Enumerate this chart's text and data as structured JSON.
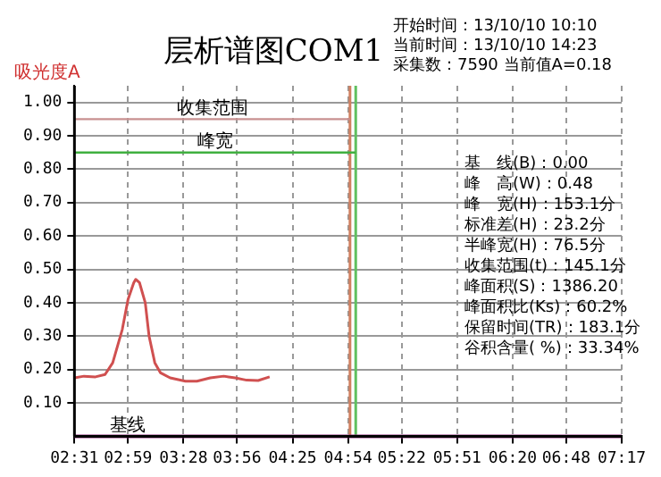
{
  "chart_data": {
    "type": "line",
    "title": "层析谱图COM1",
    "ylabel": "吸光度A",
    "xlim": [
      151,
      437
    ],
    "xticks": [
      {
        "value": 151,
        "label": "02:31"
      },
      {
        "value": 179,
        "label": "02:59"
      },
      {
        "value": 208,
        "label": "03:28"
      },
      {
        "value": 236,
        "label": "03:56"
      },
      {
        "value": 265,
        "label": "04:25"
      },
      {
        "value": 294,
        "label": "04:54"
      },
      {
        "value": 322,
        "label": "05:22"
      },
      {
        "value": 351,
        "label": "05:51"
      },
      {
        "value": 380,
        "label": "06:20"
      },
      {
        "value": 408,
        "label": "06:48"
      },
      {
        "value": 437,
        "label": "07:17"
      }
    ],
    "ylim": [
      0,
      1.05
    ],
    "yticks": [
      {
        "value": 0.1,
        "label": "0.10"
      },
      {
        "value": 0.2,
        "label": "0.20"
      },
      {
        "value": 0.3,
        "label": "0.30"
      },
      {
        "value": 0.4,
        "label": "0.40"
      },
      {
        "value": 0.5,
        "label": "0.50"
      },
      {
        "value": 0.6,
        "label": "0.60"
      },
      {
        "value": 0.7,
        "label": "0.70"
      },
      {
        "value": 0.8,
        "label": "0.80"
      },
      {
        "value": 0.9,
        "label": "0.90"
      },
      {
        "value": 1.0,
        "label": "1.00"
      }
    ],
    "series": [
      {
        "color": "#d05050",
        "x": [
          151,
          156,
          162,
          167,
          171,
          176,
          179,
          182,
          183,
          185,
          188,
          190,
          193,
          196,
          201,
          209,
          215,
          222,
          229,
          235,
          241,
          247,
          253
        ],
        "values": [
          0.175,
          0.18,
          0.178,
          0.185,
          0.22,
          0.32,
          0.41,
          0.46,
          0.47,
          0.46,
          0.4,
          0.3,
          0.22,
          0.19,
          0.175,
          0.165,
          0.165,
          0.175,
          0.18,
          0.175,
          0.168,
          0.167,
          0.178
        ]
      },
      {
        "name": "收集范围",
        "color": "#c89090",
        "x": [
          151,
          295
        ],
        "values": [
          0.95,
          0.95
        ]
      },
      {
        "name": "峰宽",
        "color": "#40b040",
        "x": [
          151,
          298
        ],
        "values": [
          0.85,
          0.85
        ]
      }
    ],
    "ref_lines": [
      {
        "axis": "x",
        "value": 295,
        "color": "#d08060"
      },
      {
        "axis": "x",
        "value": 298,
        "color": "#60c060"
      },
      {
        "axis": "y",
        "value": 0,
        "label": "基线",
        "color": "#903080"
      }
    ],
    "grid": true,
    "line_style": "solid",
    "marker": "none",
    "legend": false,
    "annotations": [
      "开始时间：13/10/10 10:10",
      "当前时间：13/10/10 14:23",
      "采集数：7590 当前值A=0.18",
      "基　线(B)：0.00",
      "峰　高(W)：0.48",
      "峰　宽(H)：153.1分",
      "标准差(H)：23.2分",
      "半峰宽(H)：76.5分",
      "收集范围(t)：145.1分",
      "峰面积(S)：1386.20",
      "峰面积比(Ks)：60.2%",
      "保留时间(TR)：183.1分",
      "谷积含量( %)：33.34%"
    ]
  }
}
